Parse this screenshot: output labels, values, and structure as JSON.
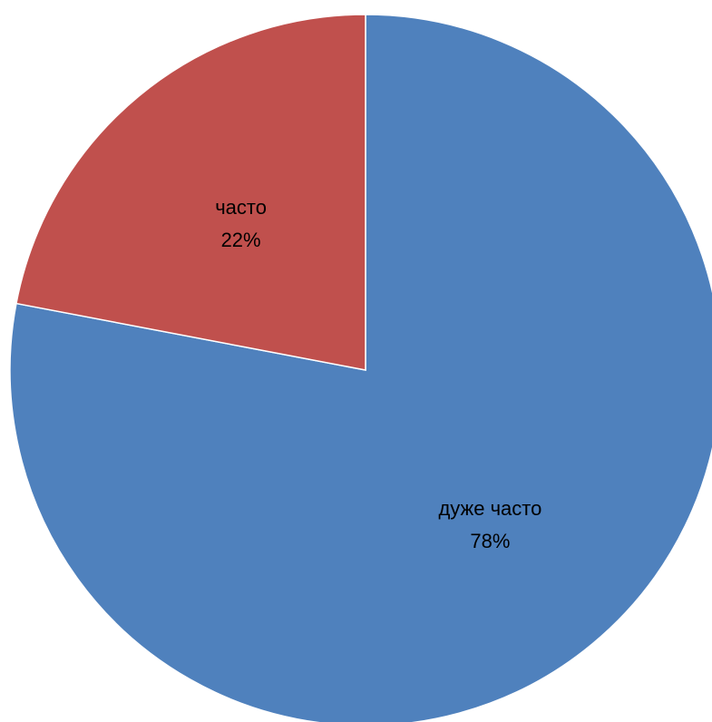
{
  "chart_data": {
    "type": "pie",
    "start_angle_deg": 0,
    "direction": "clockwise",
    "slices": [
      {
        "label": "дуже часто",
        "value": 78,
        "value_label": "78%",
        "color": "#4F81BD"
      },
      {
        "label": "часто",
        "value": 22,
        "value_label": "22%",
        "color": "#C0504D"
      }
    ]
  }
}
